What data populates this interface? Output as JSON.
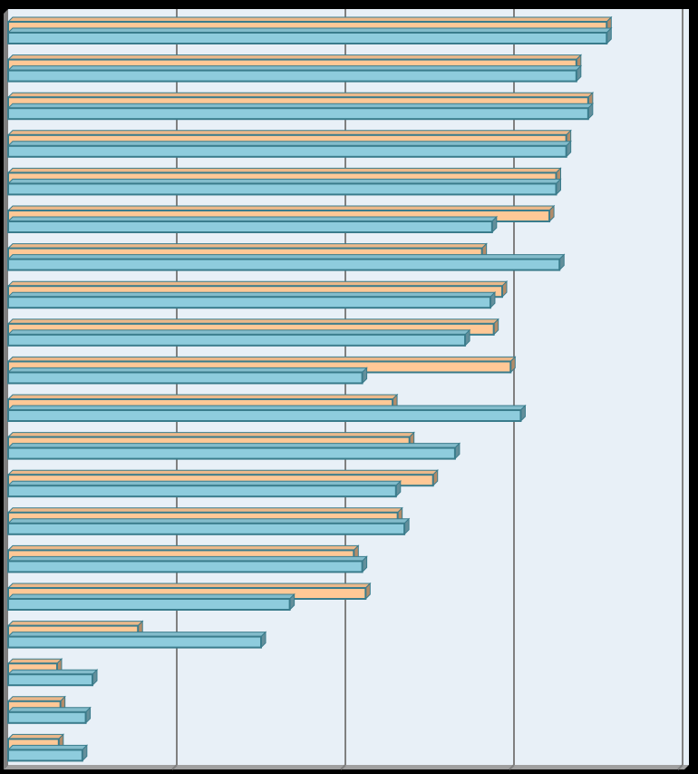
{
  "chart_data": {
    "type": "bar",
    "orientation": "horizontal",
    "style": "3d-clustered",
    "title": "",
    "xlabel": "",
    "ylabel": "",
    "xlim": [
      0,
      4
    ],
    "grid": true,
    "legend": "none",
    "categories": [
      "",
      "",
      "",
      "",
      "",
      "",
      "",
      "",
      "",
      "",
      "",
      "",
      "",
      "",
      "",
      "",
      "",
      "",
      "",
      ""
    ],
    "series": [
      {
        "color": "#FFC896",
        "values": [
          3.55,
          3.37,
          3.44,
          3.31,
          3.25,
          3.21,
          2.81,
          2.93,
          2.88,
          2.98,
          2.28,
          2.38,
          2.52,
          2.31,
          2.05,
          2.12,
          0.77,
          0.29,
          0.31,
          0.3
        ]
      },
      {
        "color": "#8ECCDD",
        "values": [
          3.55,
          3.37,
          3.44,
          3.31,
          3.25,
          2.87,
          3.27,
          2.86,
          2.71,
          2.1,
          3.04,
          2.65,
          2.3,
          2.35,
          2.1,
          1.67,
          1.5,
          0.5,
          0.46,
          0.44
        ]
      }
    ],
    "colors": {
      "plot_background": "#E8F0F7",
      "outer_background": "#000000",
      "gridline": "#808080",
      "bar_edge": "#3A7C8C",
      "floor": "#7F7F7F"
    }
  }
}
